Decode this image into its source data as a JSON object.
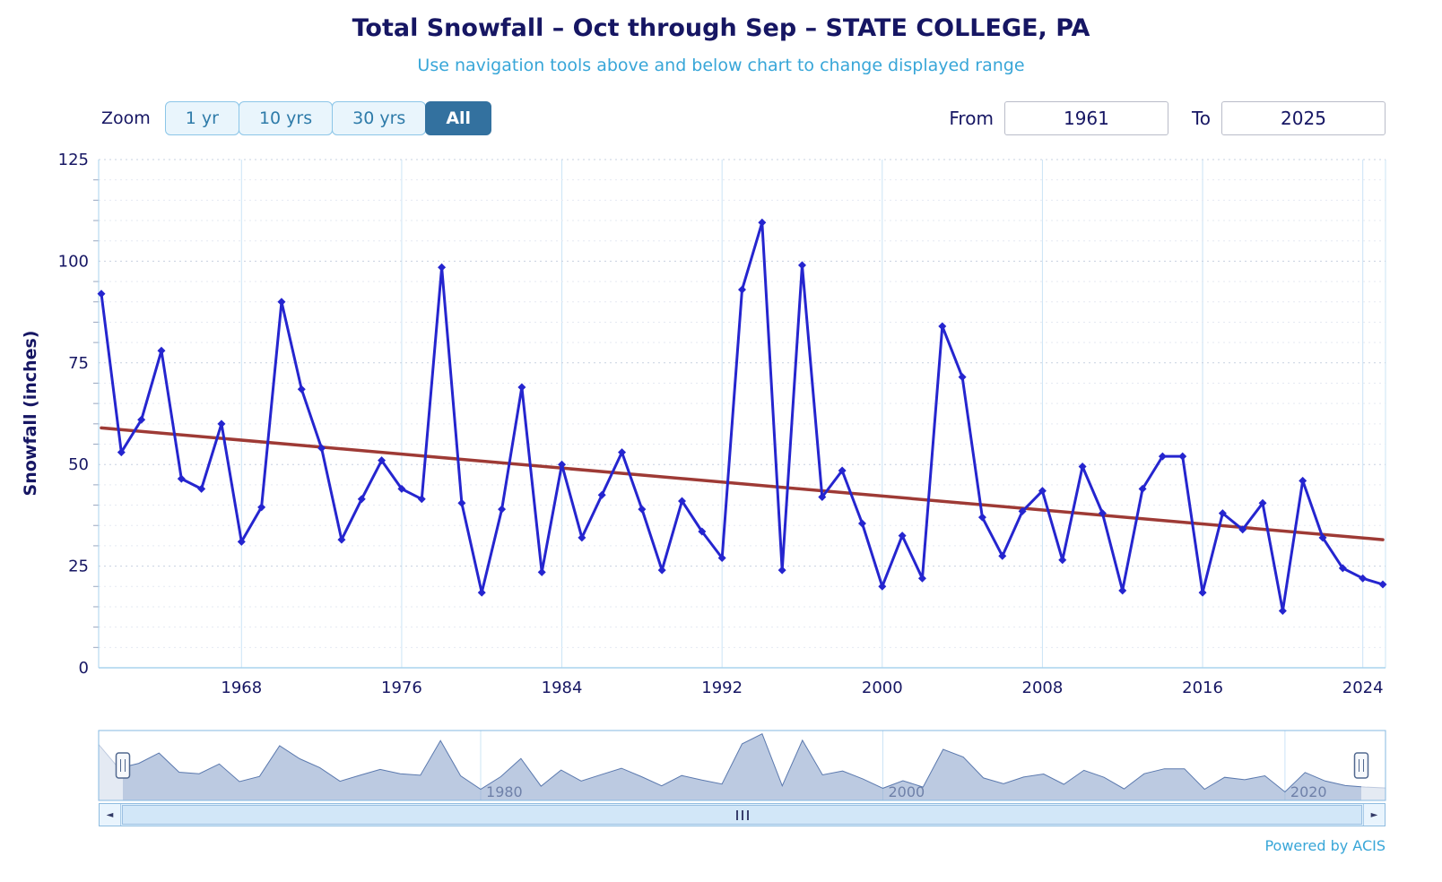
{
  "header": {
    "title": "Total Snowfall – Oct through Sep – STATE COLLEGE, PA",
    "subtitle": "Use navigation tools above and below chart to change displayed range"
  },
  "controls": {
    "zoom_label": "Zoom",
    "zoom_buttons": [
      {
        "label": "1 yr",
        "selected": false
      },
      {
        "label": "10 yrs",
        "selected": false
      },
      {
        "label": "30 yrs",
        "selected": false
      },
      {
        "label": "All",
        "selected": true
      }
    ],
    "from_label": "From",
    "from_value": "1961",
    "to_label": "To",
    "to_value": "2025"
  },
  "icons": {
    "left_arrow": "◄",
    "right_arrow": "►"
  },
  "footer": {
    "credit": "Powered by ACIS"
  },
  "colors": {
    "title": "#161663",
    "subtitle": "#38a6d8",
    "series": "#2525cf",
    "trend": "#9e3a35",
    "gridline": "#cbe4f6",
    "axis_line": "#a9d3ee",
    "navigator_fill": "rgba(144,166,205,0.6)",
    "navigator_stroke": "#5b79ae",
    "selected_button_bg": "#33719f"
  },
  "chart_data": {
    "type": "line",
    "title": "Total Snowfall – Oct through Sep – STATE COLLEGE, PA",
    "subtitle": "Use navigation tools above and below chart to change displayed range",
    "xlabel": "",
    "ylabel": "Snowfall (inches)",
    "ylim": [
      0,
      125
    ],
    "yticks": [
      0,
      25,
      50,
      75,
      100,
      125
    ],
    "minor_tick_step": 5,
    "xticks": [
      1968,
      1976,
      1984,
      1992,
      2000,
      2008,
      2016,
      2024
    ],
    "grid": true,
    "legend_position": "none",
    "x": [
      1961,
      1962,
      1963,
      1964,
      1965,
      1966,
      1967,
      1968,
      1969,
      1970,
      1971,
      1972,
      1973,
      1974,
      1975,
      1976,
      1977,
      1978,
      1979,
      1980,
      1981,
      1982,
      1983,
      1984,
      1985,
      1986,
      1987,
      1988,
      1989,
      1990,
      1991,
      1992,
      1993,
      1994,
      1995,
      1996,
      1997,
      1998,
      1999,
      2000,
      2001,
      2002,
      2003,
      2004,
      2005,
      2006,
      2007,
      2008,
      2009,
      2010,
      2011,
      2012,
      2013,
      2014,
      2015,
      2016,
      2017,
      2018,
      2019,
      2020,
      2021,
      2022,
      2023,
      2024,
      2025
    ],
    "series": [
      {
        "name": "Total Snowfall",
        "type": "line",
        "color": "#2525cf",
        "marker": "diamond",
        "values": [
          92,
          53,
          61,
          78,
          46.5,
          44,
          60,
          31,
          39.5,
          90,
          68.5,
          54,
          31.5,
          41.5,
          51,
          44,
          41.5,
          98.5,
          40.5,
          18.5,
          39,
          69,
          23.5,
          50,
          32,
          42.5,
          53,
          39,
          24,
          41,
          33.5,
          27,
          93,
          109.5,
          24,
          99,
          42,
          48.5,
          35.5,
          20,
          32.5,
          22,
          84,
          71.5,
          37,
          27.5,
          38.5,
          43.5,
          26.5,
          49.5,
          38,
          19,
          44,
          52,
          52,
          18.5,
          38,
          34,
          40.5,
          14,
          46,
          32,
          24.5,
          22,
          20.5
        ]
      },
      {
        "name": "Trend",
        "type": "trend-line",
        "color": "#9e3a35",
        "points": [
          [
            1961,
            59
          ],
          [
            2025,
            31.5
          ]
        ]
      }
    ],
    "navigator": {
      "type": "area",
      "color": "rgba(144,166,205,0.6)",
      "xticks": [
        1980,
        2000,
        2020
      ],
      "selected_range": [
        1961,
        2025
      ]
    }
  }
}
